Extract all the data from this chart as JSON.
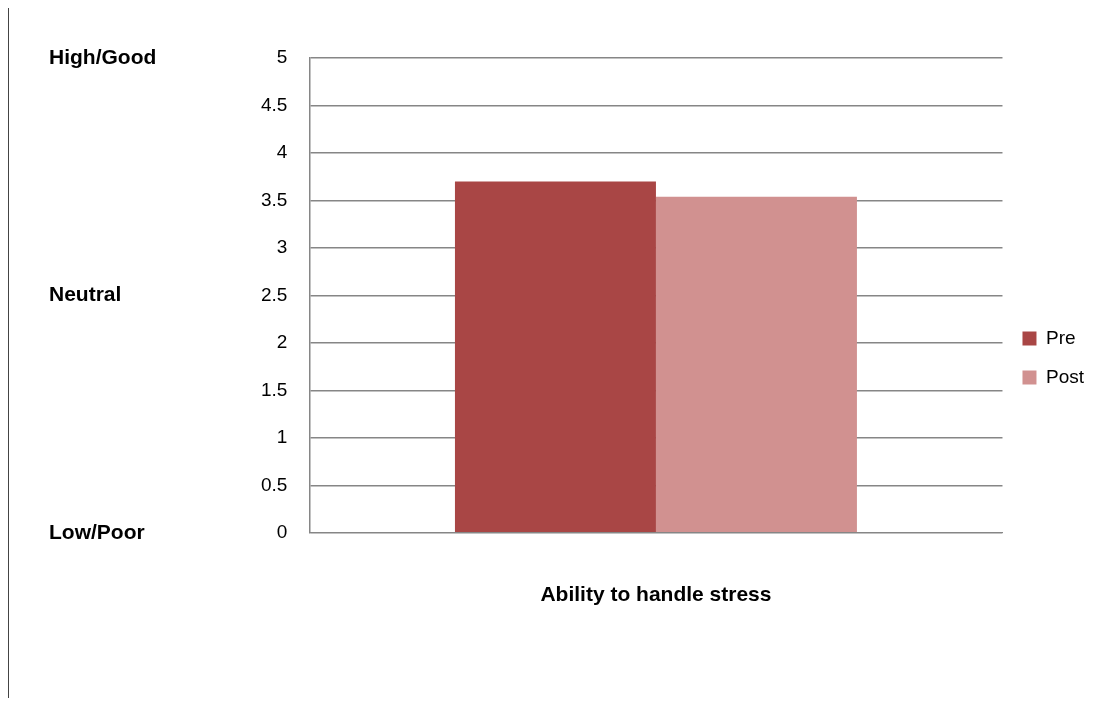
{
  "chart_data": {
    "type": "bar",
    "categories": [
      "Ability to handle stress"
    ],
    "series": [
      {
        "name": "Pre",
        "color": "#a94645",
        "values": [
          3.7
        ]
      },
      {
        "name": "Post",
        "color": "#d19190",
        "values": [
          3.54
        ]
      }
    ],
    "ylim": [
      0,
      5
    ],
    "yticks": [
      0,
      0.5,
      1,
      1.5,
      2,
      2.5,
      3,
      3.5,
      4,
      4.5,
      5
    ],
    "annotations": [
      "High/Good",
      "Neutral",
      "Low/Poor"
    ],
    "grid": "y",
    "legend": "right"
  }
}
